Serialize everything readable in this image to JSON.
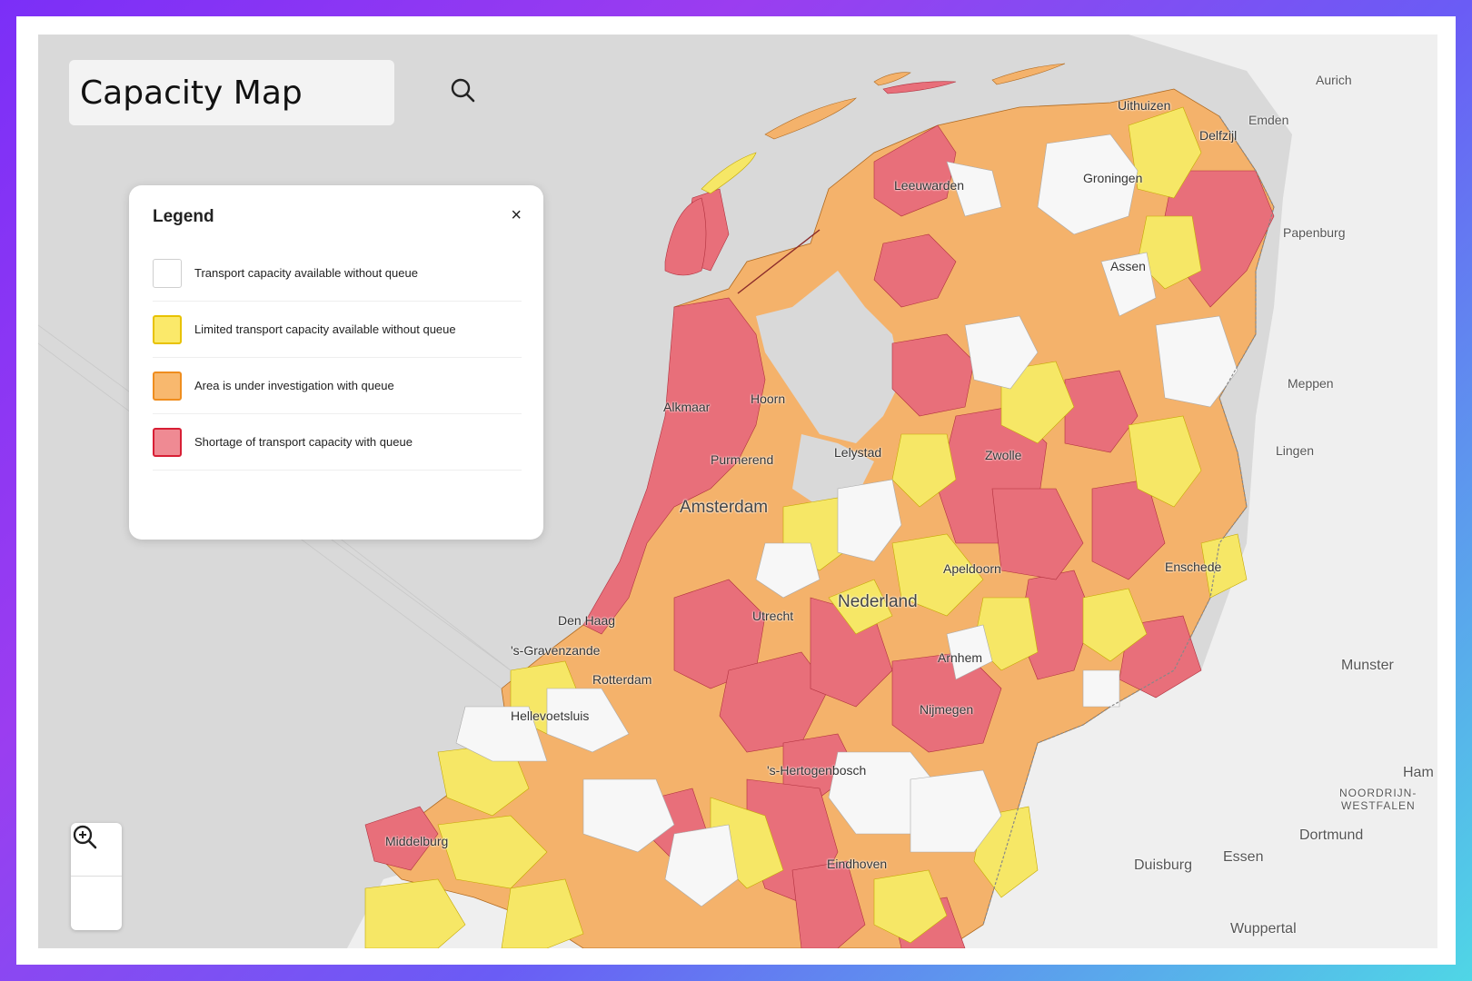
{
  "app": {
    "title": "Capacity Map"
  },
  "legend": {
    "title": "Legend",
    "close_symbol": "×",
    "items": [
      {
        "label": "Transport capacity available without queue",
        "fill": "#ffffff",
        "border": "#cfcfcf"
      },
      {
        "label": "Limited transport capacity available without queue",
        "fill": "#fbe96a",
        "border": "#e8c200"
      },
      {
        "label": "Area is under investigation with queue",
        "fill": "#f8b86e",
        "border": "#ef8d1e"
      },
      {
        "label": "Shortage of transport capacity with queue",
        "fill": "#ef8a93",
        "border": "#d81f35"
      }
    ]
  },
  "colors": {
    "water": "#d8d8d8",
    "land_outside": "#efefef",
    "white_area": "#f7f7f7",
    "yellow_area": "#f6e766",
    "orange_area": "#f4b26b",
    "red_area": "#e86f7a"
  },
  "icons": {
    "search": "search-icon",
    "zoom_in": "zoom-in-icon",
    "zoom_out": "zoom-out-icon",
    "close": "close-icon"
  },
  "map": {
    "cities": [
      {
        "name": "Uithuizen"
      },
      {
        "name": "Delfzijl"
      },
      {
        "name": "Leeuwarden"
      },
      {
        "name": "Groningen"
      },
      {
        "name": "Assen"
      },
      {
        "name": "Hoorn"
      },
      {
        "name": "Alkmaar"
      },
      {
        "name": "Lelystad"
      },
      {
        "name": "Purmerend"
      },
      {
        "name": "Zwolle"
      },
      {
        "name": "Amsterdam"
      },
      {
        "name": "Apeldoorn"
      },
      {
        "name": "Enschede"
      },
      {
        "name": "Nederland"
      },
      {
        "name": "Den Haag"
      },
      {
        "name": "Utrecht"
      },
      {
        "name": "'s-Gravenzande"
      },
      {
        "name": "Rotterdam"
      },
      {
        "name": "Arnhem"
      },
      {
        "name": "Hellevoetsluis"
      },
      {
        "name": "Nijmegen"
      },
      {
        "name": "'s-Hertogenbosch"
      },
      {
        "name": "Middelburg"
      },
      {
        "name": "Eindhoven"
      },
      {
        "name": "Aurich"
      },
      {
        "name": "Emden"
      },
      {
        "name": "Papenburg"
      },
      {
        "name": "Meppen"
      },
      {
        "name": "Lingen"
      },
      {
        "name": "Munster"
      },
      {
        "name": "NOORDRIJN-"
      },
      {
        "name": "WESTFALEN"
      },
      {
        "name": "Ham"
      },
      {
        "name": "Dortmund"
      },
      {
        "name": "Essen"
      },
      {
        "name": "Duisburg"
      },
      {
        "name": "Wuppertal"
      }
    ]
  }
}
